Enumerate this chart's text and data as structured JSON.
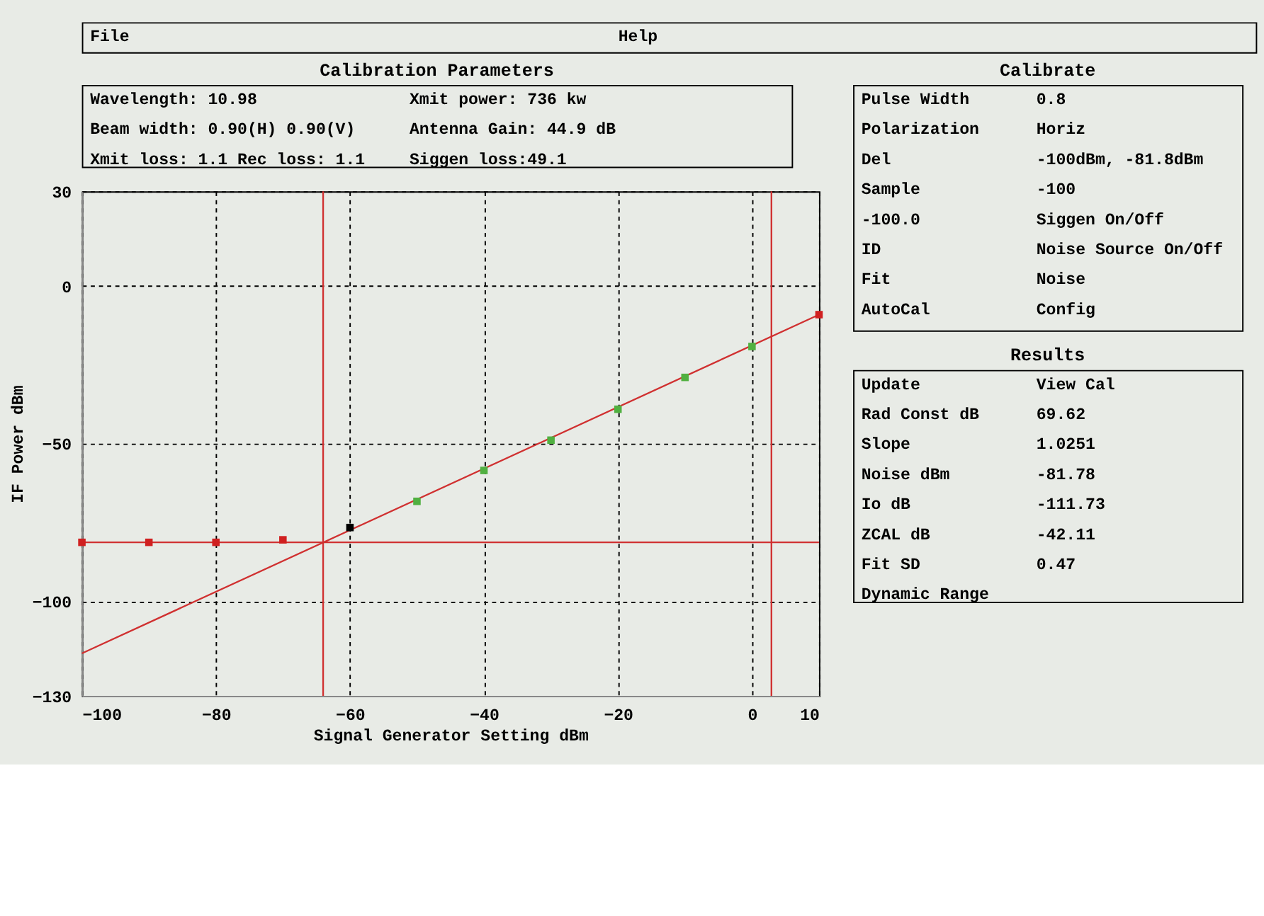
{
  "chart_data": [
    {
      "type": "other",
      "annotations": [
        "File",
        "Help"
      ]
    },
    {
      "type": "other",
      "title": "Calibration Parameters",
      "annotations": [
        "Wavelength: 10.98",
        "Xmit power: 736 kw",
        "Beam width: 0.90(H)   0.90(V)",
        "Antenna Gain: 44.9 dB",
        "Xmit loss: 1.1  Rec loss: 1.1",
        "Siggen loss:49.1"
      ]
    },
    {
      "type": "scatter",
      "xlabel": "Signal Generator Setting dBm",
      "ylabel": "IF Power dBm",
      "xlim": [
        -100,
        10
      ],
      "ylim": [
        -130,
        30
      ],
      "xticks": [
        -100,
        -80,
        -60,
        -40,
        -20,
        0,
        10
      ],
      "yticks": [
        -130,
        -100,
        -50,
        0,
        30
      ],
      "grid": true,
      "series": [
        {
          "type": "line",
          "color": "#d03030",
          "x": [
            -100,
            10
          ],
          "values": [
            -116.5,
            -9.1
          ],
          "line_style": "solid"
        },
        {
          "type": "scatter",
          "marker": "square",
          "color": "#d02020",
          "x": [
            -100,
            -90,
            -80,
            -70,
            10
          ],
          "values": [
            -81.3,
            -81.3,
            -81.3,
            -80.5,
            -9.1
          ]
        },
        {
          "type": "scatter",
          "marker": "square",
          "color": "#50b040",
          "x": [
            -50,
            -40,
            -30,
            -20,
            -10,
            0
          ],
          "values": [
            -68.3,
            -58.5,
            -48.9,
            -39.1,
            -29.0,
            -19.2
          ]
        },
        {
          "type": "scatter",
          "marker": "square",
          "color": "#000000",
          "x": [
            -60
          ],
          "values": [
            -76.6
          ]
        }
      ],
      "ref_lines": [
        {
          "axis": "x",
          "value": -64.0,
          "color": "#d03030"
        },
        {
          "axis": "x",
          "value": 2.9,
          "color": "#d03030"
        },
        {
          "axis": "y",
          "value": -81.3,
          "color": "#d03030"
        }
      ]
    },
    {
      "type": "other",
      "title": "Calibrate",
      "annotations": [
        "Pulse Width",
        "0.8",
        "Polarization",
        "Horiz",
        "Del",
        "-100dBm, -81.8dBm",
        "Sample",
        "-100",
        "-100.0",
        "Siggen On/Off",
        "ID",
        "Noise Source On/Off",
        "Fit",
        "Noise",
        "AutoCal",
        "Config"
      ]
    },
    {
      "type": "other",
      "title": "Results",
      "annotations": [
        "Update",
        "View Cal",
        "Rad Const dB",
        "69.62",
        "Slope",
        "1.0251",
        "Noise dBm",
        "-81.78",
        "Io dB",
        "-111.73",
        "ZCAL dB",
        "-42.11",
        "Fit SD",
        "0.47",
        "Dynamic Range"
      ]
    }
  ]
}
